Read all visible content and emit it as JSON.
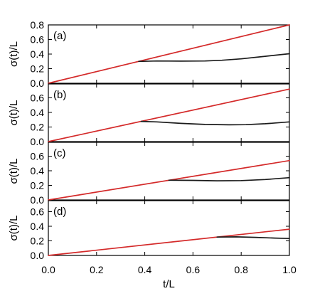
{
  "chart_data": {
    "type": "line",
    "xlabel": "t/L",
    "x_range": [
      0.0,
      1.0
    ],
    "x_ticks": [
      "0.0",
      "0.2",
      "0.4",
      "0.6",
      "0.8",
      "1.0"
    ],
    "panels": [
      {
        "label": "(a)",
        "ylabel": "σ(t)/L",
        "ylim": [
          0.0,
          0.8
        ],
        "y_ticks": [
          "0.0",
          "0.2",
          "0.4",
          "0.6",
          "0.8"
        ],
        "series": [
          {
            "color": "#d42a2a",
            "points": [
              [
                0.0,
                0.0
              ],
              [
                1.0,
                0.8
              ]
            ]
          },
          {
            "color": "#1a1a1a",
            "points": [
              [
                0.375,
                0.3
              ],
              [
                0.45,
                0.305
              ],
              [
                0.55,
                0.303
              ],
              [
                0.65,
                0.305
              ],
              [
                0.72,
                0.315
              ],
              [
                0.8,
                0.335
              ],
              [
                0.9,
                0.37
              ],
              [
                1.0,
                0.405
              ]
            ]
          }
        ]
      },
      {
        "label": "(b)",
        "ylabel": "σ(t)/L",
        "ylim": [
          0.0,
          0.8
        ],
        "y_ticks": [
          "0.0",
          "0.2",
          "0.4",
          "0.6"
        ],
        "series": [
          {
            "color": "#d42a2a",
            "points": [
              [
                0.0,
                0.0
              ],
              [
                1.0,
                0.72
              ]
            ]
          },
          {
            "color": "#1a1a1a",
            "points": [
              [
                0.385,
                0.277
              ],
              [
                0.45,
                0.27
              ],
              [
                0.55,
                0.25
              ],
              [
                0.65,
                0.235
              ],
              [
                0.75,
                0.23
              ],
              [
                0.82,
                0.232
              ],
              [
                0.9,
                0.245
              ],
              [
                1.0,
                0.27
              ]
            ]
          }
        ]
      },
      {
        "label": "(c)",
        "ylabel": "σ(t)/L",
        "ylim": [
          0.0,
          0.8
        ],
        "y_ticks": [
          "0.0",
          "0.2",
          "0.4",
          "0.6"
        ],
        "series": [
          {
            "color": "#d42a2a",
            "points": [
              [
                0.0,
                0.0
              ],
              [
                1.0,
                0.54
              ]
            ]
          },
          {
            "color": "#1a1a1a",
            "points": [
              [
                0.5,
                0.27
              ],
              [
                0.6,
                0.268
              ],
              [
                0.7,
                0.262
              ],
              [
                0.8,
                0.265
              ],
              [
                0.9,
                0.28
              ],
              [
                1.0,
                0.305
              ]
            ]
          }
        ]
      },
      {
        "label": "(d)",
        "ylabel": "σ(t)/L",
        "ylim": [
          0.0,
          0.8
        ],
        "y_ticks": [
          "0.0",
          "0.2",
          "0.4",
          "0.6"
        ],
        "series": [
          {
            "color": "#d42a2a",
            "points": [
              [
                0.0,
                0.0
              ],
              [
                1.0,
                0.36
              ]
            ]
          },
          {
            "color": "#1a1a1a",
            "points": [
              [
                0.7,
                0.252
              ],
              [
                0.78,
                0.255
              ],
              [
                0.86,
                0.248
              ],
              [
                0.94,
                0.238
              ],
              [
                1.0,
                0.232
              ]
            ]
          }
        ]
      }
    ]
  }
}
